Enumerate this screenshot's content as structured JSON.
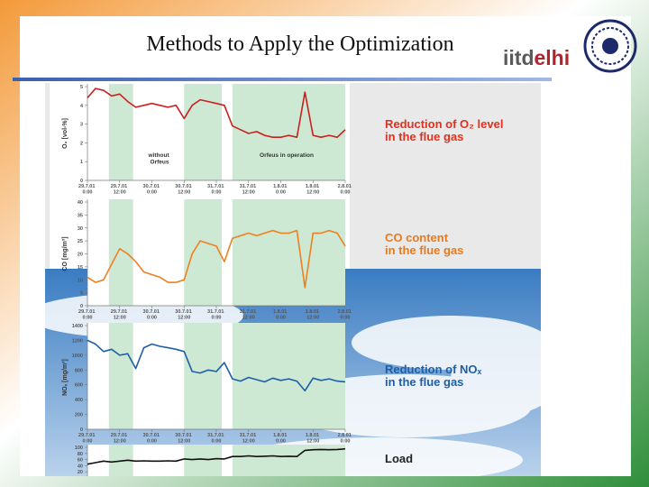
{
  "slide": {
    "title": "Methods to Apply the Optimization",
    "logo": [
      "iitd",
      "elhi"
    ]
  },
  "chart_data": [
    {
      "type": "line",
      "caption": [
        "Reduction of O₂ level",
        "in the flue gas"
      ],
      "caption_color": "#e0301e",
      "ylabel": "O₂ [vol-%]",
      "annotations": [
        "without Orfeus",
        "Orfeus in operation"
      ],
      "x": [
        0,
        3,
        6,
        9,
        12,
        15,
        18,
        21,
        24,
        27,
        30,
        33,
        36,
        39,
        42,
        45,
        48,
        51,
        54,
        57,
        60,
        63,
        66,
        69,
        72,
        75,
        78,
        81,
        84,
        87,
        90,
        93,
        96
      ],
      "values": [
        4.4,
        4.9,
        4.8,
        4.5,
        4.6,
        4.2,
        3.9,
        4.0,
        4.1,
        4.0,
        3.9,
        4.0,
        3.3,
        4.0,
        4.3,
        4.2,
        4.1,
        4.0,
        2.9,
        2.7,
        2.5,
        2.6,
        2.4,
        2.3,
        2.3,
        2.4,
        2.3,
        4.7,
        2.4,
        2.3,
        2.4,
        2.3,
        2.7
      ],
      "color": "#cc1f1f",
      "shaded": [
        [
          8,
          17
        ],
        [
          36,
          50
        ],
        [
          54,
          96
        ]
      ],
      "shade_color": "#cde8d3",
      "xlim": [
        0,
        96
      ],
      "xticks": [
        {
          "value": 0,
          "label": "29.7.01 0:00"
        },
        {
          "value": 12,
          "label": "29.7.01 12:00"
        },
        {
          "value": 24,
          "label": "30.7.01 0:00"
        },
        {
          "value": 36,
          "label": "30.7.01 12:00"
        },
        {
          "value": 48,
          "label": "31.7.01 0:00"
        },
        {
          "value": 60,
          "label": "31.7.01 12:00"
        },
        {
          "value": 72,
          "label": "1.8.01 0:00"
        },
        {
          "value": 84,
          "label": "1.8.01 12:00"
        },
        {
          "value": 96,
          "label": "2.8.01 0:00"
        }
      ],
      "ylim": [
        0,
        5
      ],
      "yticks": [
        0,
        1,
        2,
        3,
        4,
        5
      ]
    },
    {
      "type": "line",
      "caption": [
        "CO content",
        "in the flue gas"
      ],
      "caption_color": "#e87a1e",
      "ylabel": "CO [mg/m³]",
      "x": [
        0,
        3,
        6,
        9,
        12,
        15,
        18,
        21,
        24,
        27,
        30,
        33,
        36,
        39,
        42,
        45,
        48,
        51,
        54,
        57,
        60,
        63,
        66,
        69,
        72,
        75,
        78,
        81,
        84,
        87,
        90,
        93,
        96
      ],
      "values": [
        11,
        9,
        10,
        16,
        22,
        20,
        17,
        13,
        12,
        11,
        9,
        9,
        10,
        20,
        25,
        24,
        23,
        17,
        26,
        27,
        28,
        27,
        28,
        29,
        28,
        28,
        29,
        7,
        28,
        28,
        29,
        28,
        23
      ],
      "color": "#ee8020",
      "shaded": [
        [
          8,
          17
        ],
        [
          36,
          50
        ],
        [
          54,
          96
        ]
      ],
      "shade_color": "#cde8d3",
      "xlim": [
        0,
        96
      ],
      "xticks": [
        {
          "value": 0,
          "label": "29.7.01 0:00"
        },
        {
          "value": 12,
          "label": "29.7.01 12:00"
        },
        {
          "value": 24,
          "label": "30.7.01 0:00"
        },
        {
          "value": 36,
          "label": "30.7.01 12:00"
        },
        {
          "value": 48,
          "label": "31.7.01 0:00"
        },
        {
          "value": 60,
          "label": "31.7.01 12:00"
        },
        {
          "value": 72,
          "label": "1.8.01 0:00"
        },
        {
          "value": 84,
          "label": "1.8.01 12:00"
        },
        {
          "value": 96,
          "label": "2.8.01 0:00"
        }
      ],
      "ylim": [
        0,
        40
      ],
      "yticks": [
        0,
        5,
        10,
        15,
        20,
        25,
        30,
        35,
        40
      ]
    },
    {
      "type": "line",
      "caption": [
        "Reduction of NOₓ",
        "in the flue gas"
      ],
      "caption_color": "#1f5fa8",
      "ylabel": "NOₓ [mg/m³]",
      "x": [
        0,
        3,
        6,
        9,
        12,
        15,
        18,
        21,
        24,
        27,
        30,
        33,
        36,
        39,
        42,
        45,
        48,
        51,
        54,
        57,
        60,
        63,
        66,
        69,
        72,
        75,
        78,
        81,
        84,
        87,
        90,
        93,
        96
      ],
      "values": [
        1200,
        1150,
        1050,
        1080,
        1000,
        1020,
        820,
        1100,
        1150,
        1120,
        1100,
        1080,
        1050,
        780,
        760,
        800,
        780,
        900,
        680,
        650,
        700,
        670,
        640,
        690,
        660,
        680,
        650,
        520,
        690,
        660,
        680,
        650,
        640
      ],
      "color": "#1f5fa8",
      "shaded": [
        [
          8,
          17
        ],
        [
          36,
          50
        ],
        [
          54,
          96
        ]
      ],
      "shade_color": "#cde8d3",
      "xlim": [
        0,
        96
      ],
      "xticks": [
        {
          "value": 0,
          "label": "29.7.01 0:00"
        },
        {
          "value": 12,
          "label": "29.7.01 12:00"
        },
        {
          "value": 24,
          "label": "30.7.01 0:00"
        },
        {
          "value": 36,
          "label": "30.7.01 12:00"
        },
        {
          "value": 48,
          "label": "31.7.01 0:00"
        },
        {
          "value": 60,
          "label": "31.7.01 12:00"
        },
        {
          "value": 72,
          "label": "1.8.01 0:00"
        },
        {
          "value": 84,
          "label": "1.8.01 12:00"
        },
        {
          "value": 96,
          "label": "2.8.01 0:00"
        }
      ],
      "ylim": [
        0,
        1400
      ],
      "yticks": [
        0,
        200,
        400,
        600,
        800,
        1000,
        1200,
        1400
      ]
    },
    {
      "type": "line",
      "caption": [
        "Load"
      ],
      "caption_color": "#222222",
      "x": [
        0,
        3,
        6,
        9,
        12,
        15,
        18,
        21,
        24,
        27,
        30,
        33,
        36,
        39,
        42,
        45,
        48,
        51,
        54,
        57,
        60,
        63,
        66,
        69,
        72,
        75,
        78,
        81,
        84,
        87,
        90,
        93,
        96
      ],
      "values": [
        45,
        50,
        55,
        52,
        55,
        58,
        55,
        56,
        55,
        55,
        56,
        55,
        62,
        60,
        62,
        60,
        63,
        62,
        70,
        70,
        72,
        70,
        71,
        72,
        70,
        71,
        70,
        90,
        92,
        93,
        92,
        93,
        95
      ],
      "color": "#111111",
      "shaded": [
        [
          8,
          17
        ],
        [
          36,
          50
        ],
        [
          54,
          96
        ]
      ],
      "shade_color": "#cde8d3",
      "xlim": [
        0,
        96
      ],
      "ylim": [
        0,
        100
      ],
      "yticks": [
        20,
        40,
        60,
        80,
        100
      ]
    }
  ]
}
